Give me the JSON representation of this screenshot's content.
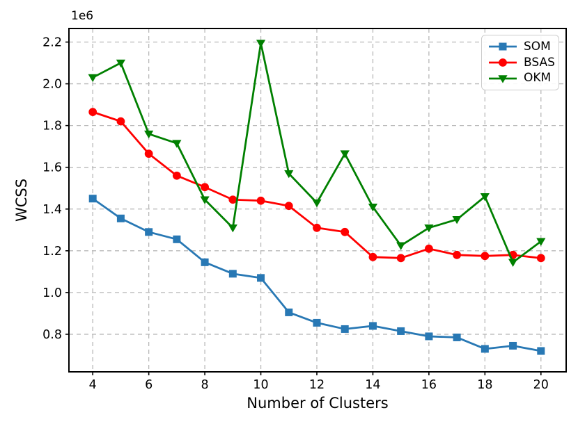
{
  "figure": {
    "xlabel": "Number of Clusters",
    "ylabel": "WCSS",
    "offset_text": "1e6"
  },
  "chart_data": {
    "type": "line",
    "title": "",
    "xlabel": "Number of Clusters",
    "ylabel": "WCSS",
    "y_offset_text": "1e6",
    "values_unit": "1e6",
    "x": [
      4,
      5,
      6,
      7,
      8,
      9,
      10,
      11,
      12,
      13,
      14,
      15,
      16,
      17,
      18,
      19,
      20
    ],
    "series": [
      {
        "name": "SOM",
        "color": "#2878b4",
        "marker": "square",
        "values": [
          1.45,
          1.355,
          1.29,
          1.255,
          1.145,
          1.09,
          1.07,
          0.905,
          0.855,
          0.825,
          0.84,
          0.815,
          0.79,
          0.785,
          0.73,
          0.745,
          0.72
        ]
      },
      {
        "name": "BSAS",
        "color": "#ff0000",
        "marker": "circle",
        "values": [
          1.865,
          1.82,
          1.665,
          1.56,
          1.505,
          1.445,
          1.44,
          1.415,
          1.31,
          1.29,
          1.17,
          1.165,
          1.21,
          1.18,
          1.175,
          1.18,
          1.165
        ]
      },
      {
        "name": "OKM",
        "color": "#008000",
        "marker": "triangle-down",
        "values": [
          2.03,
          2.1,
          1.76,
          1.715,
          1.445,
          1.31,
          2.195,
          1.57,
          1.43,
          1.665,
          1.41,
          1.225,
          1.31,
          1.35,
          1.46,
          1.145,
          1.245
        ]
      }
    ],
    "xticks": [
      4,
      6,
      8,
      10,
      12,
      14,
      16,
      18,
      20
    ],
    "yticks": [
      0.8,
      1.0,
      1.2,
      1.4,
      1.6,
      1.8,
      2.0,
      2.2
    ],
    "xlim": [
      3.15,
      20.9
    ],
    "ylim": [
      0.62,
      2.265
    ],
    "grid": true,
    "grid_style": "dashed",
    "legend_position": "upper right",
    "grid_color": "#b8b8b8",
    "spine_color": "#000000"
  }
}
